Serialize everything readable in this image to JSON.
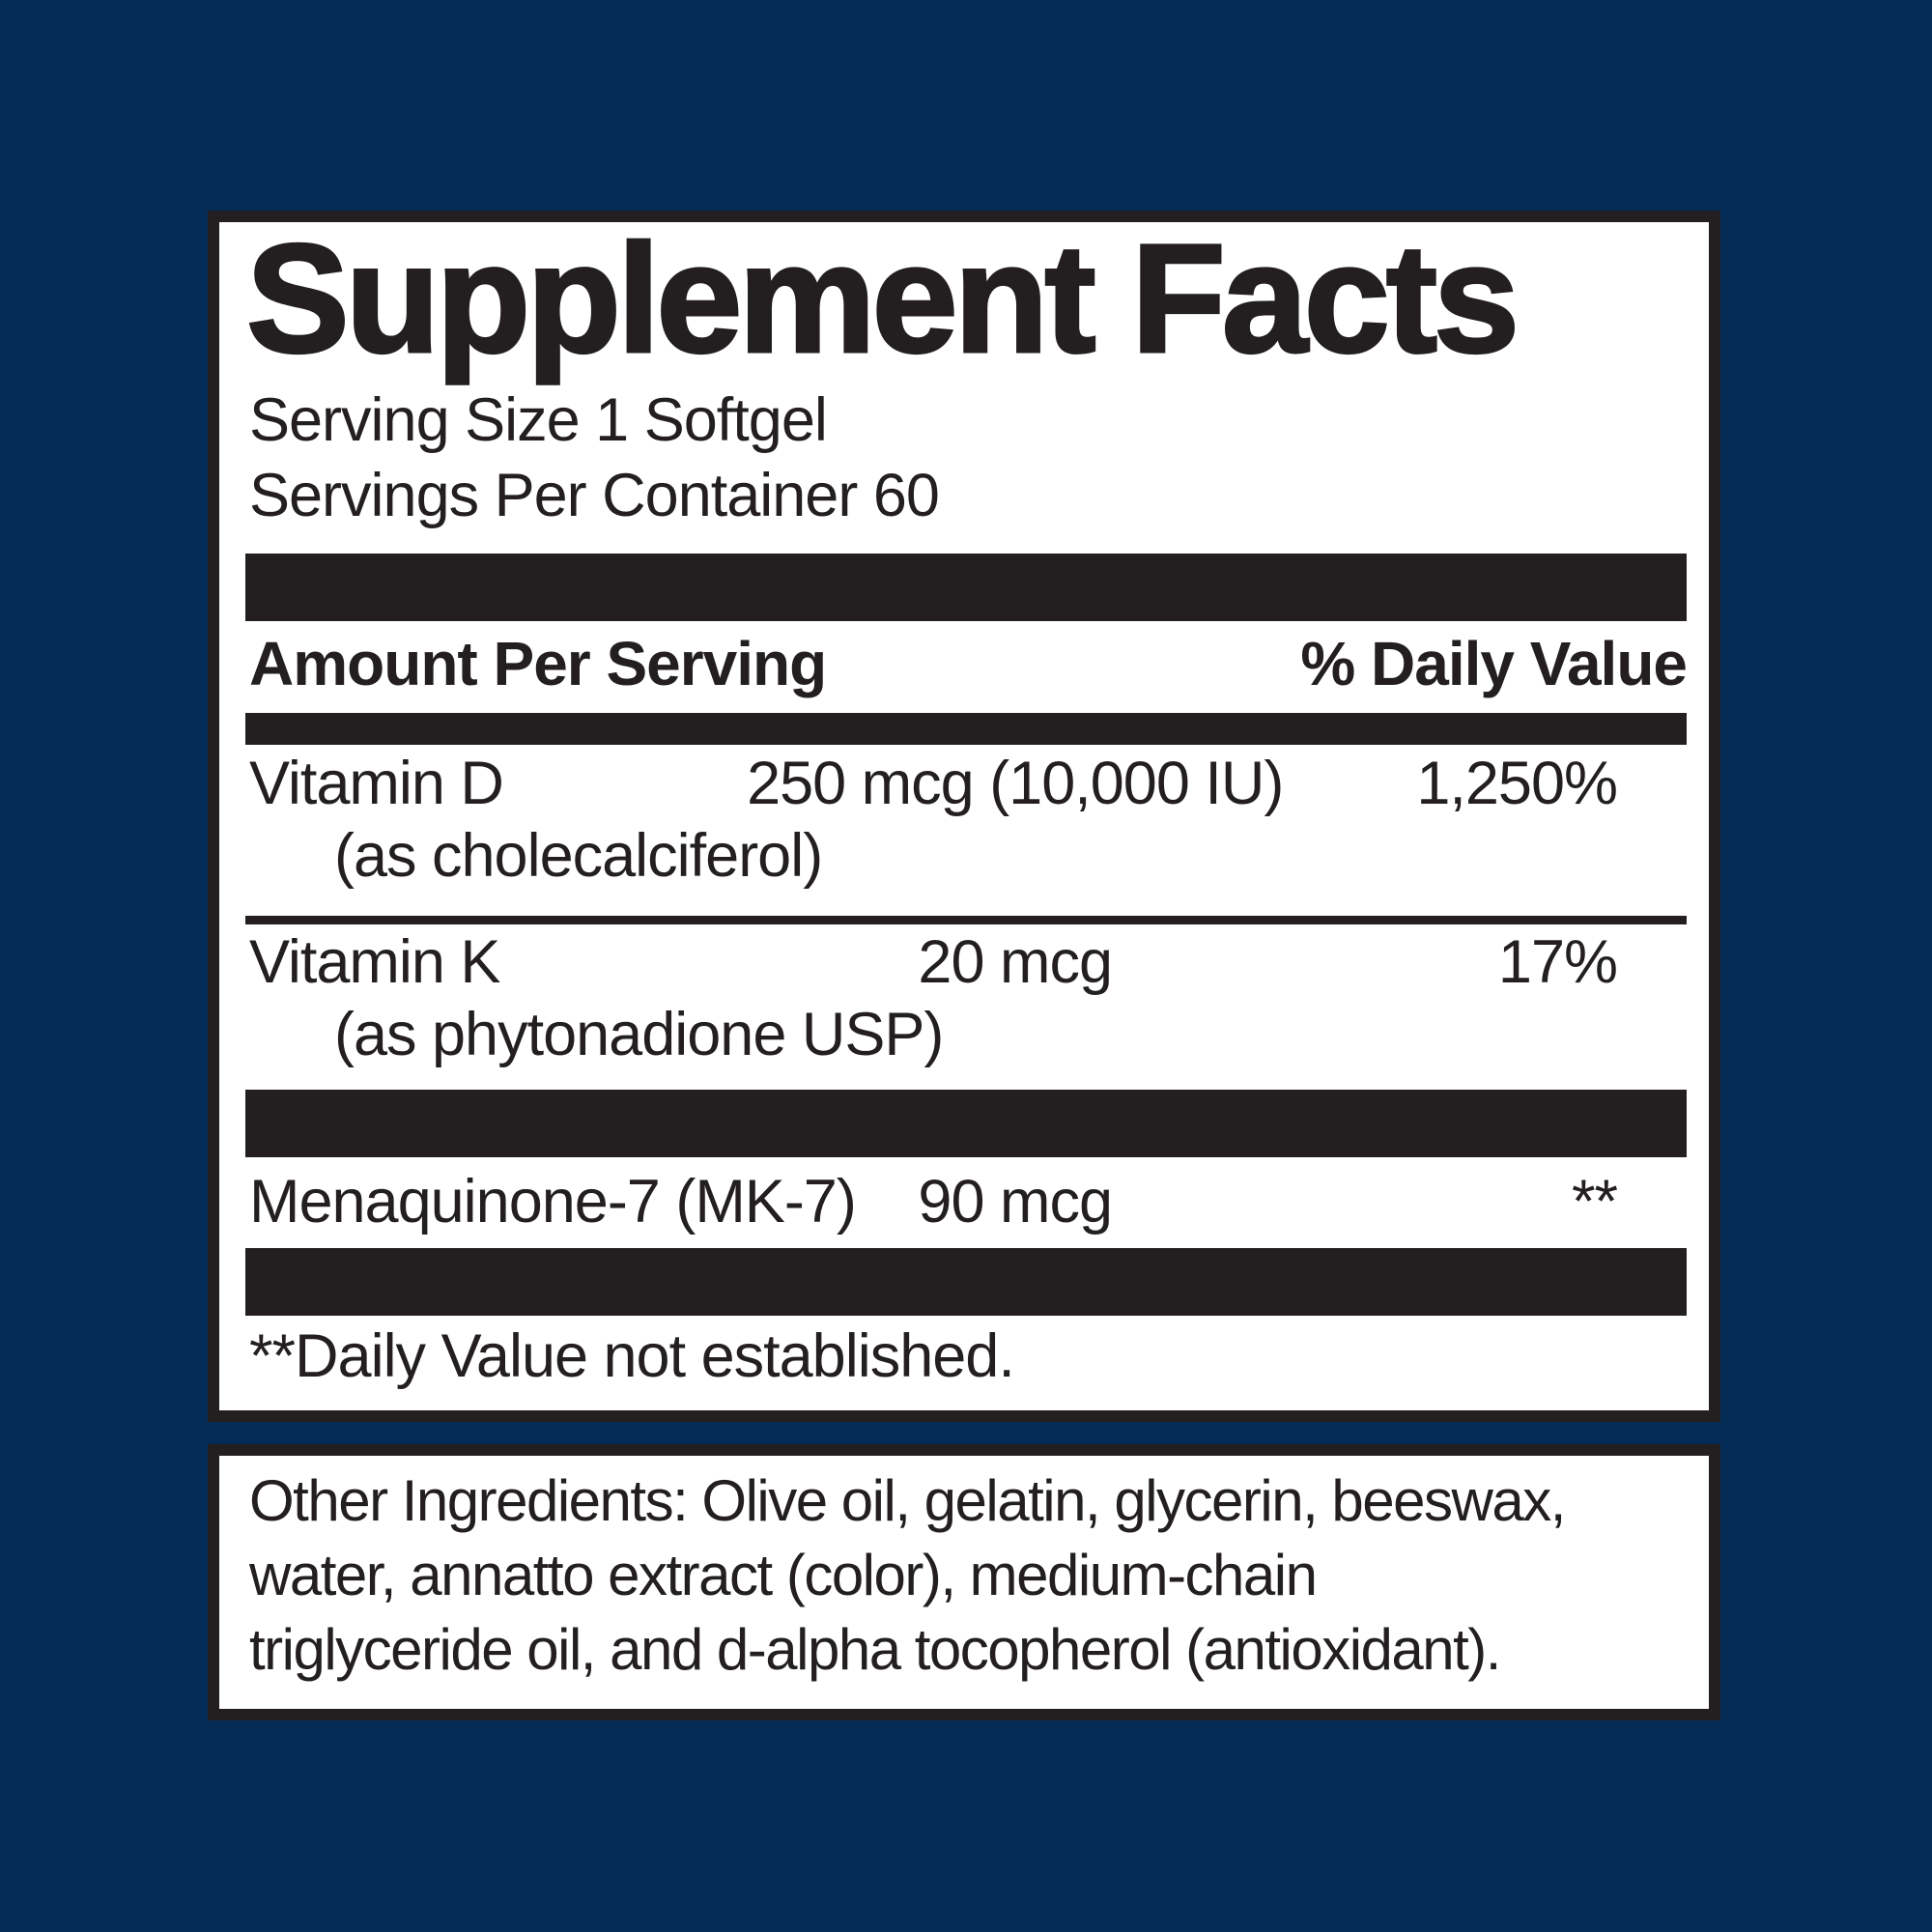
{
  "colors": {
    "background_navy": "#032b55",
    "panel_background": "#ffffff",
    "ink_black": "#231f20"
  },
  "supplement_facts": {
    "title": "Supplement Facts",
    "serving_size": "Serving Size 1 Softgel",
    "servings_per_container": "Servings Per Container 60",
    "header": {
      "amount_label": "Amount Per Serving",
      "daily_value_label": "% Daily Value"
    },
    "rows": [
      {
        "name": "Vitamin D",
        "detail": "(as cholecalciferol)",
        "amount": "250 mcg (10,000 IU)",
        "daily_value": "1,250%"
      },
      {
        "name": "Vitamin K",
        "detail": "(as phytonadione USP)",
        "amount": "20 mcg",
        "daily_value": "17%"
      },
      {
        "name": "Menaquinone-7 (MK-7)",
        "detail": "",
        "amount": "90 mcg",
        "daily_value": "**"
      }
    ],
    "footnote": "**Daily Value not established."
  },
  "other_ingredients": {
    "lines": [
      "Other Ingredients: Olive oil, gelatin, glycerin, beeswax,",
      "water, annatto extract (color), medium-chain",
      "triglyceride oil, and d-alpha tocopherol (antioxidant)."
    ]
  }
}
